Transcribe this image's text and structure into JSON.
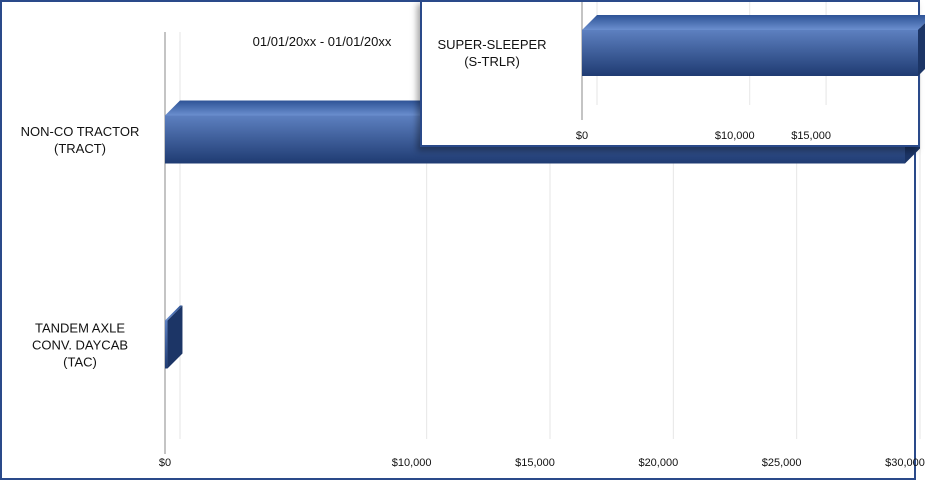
{
  "chart_data": [
    {
      "type": "bar",
      "orientation": "horizontal",
      "subtitle": "01/01/20xx - 01/01/20xx",
      "categories": [
        "NON-CO TRACTOR\n(TRACT)",
        "TANDEM AXLE\nCONV. DAYCAB\n(TAC)"
      ],
      "values": [
        30000,
        100
      ],
      "color": "#3a5f9e",
      "xlim": [
        0,
        30000
      ],
      "xticks": [
        {
          "value": 0,
          "label": "$0"
        },
        {
          "value": 10000,
          "label": "$10,000"
        },
        {
          "value": 15000,
          "label": "$15,000"
        },
        {
          "value": 20000,
          "label": "$20,000"
        },
        {
          "value": 25000,
          "label": "$25,000"
        },
        {
          "value": 30000,
          "label": "$30,000"
        }
      ],
      "grid": true
    },
    {
      "type": "bar",
      "orientation": "horizontal",
      "categories": [
        "SUPER-SLEEPER\n(S-TRLR)"
      ],
      "values": [
        22000
      ],
      "color": "#3a5f9e",
      "xlim": [
        0,
        22000
      ],
      "xticks": [
        {
          "value": 0,
          "label": "$0"
        },
        {
          "value": 10000,
          "label": "$10,000"
        },
        {
          "value": 15000,
          "label": "$15,000"
        }
      ],
      "grid": true
    }
  ]
}
